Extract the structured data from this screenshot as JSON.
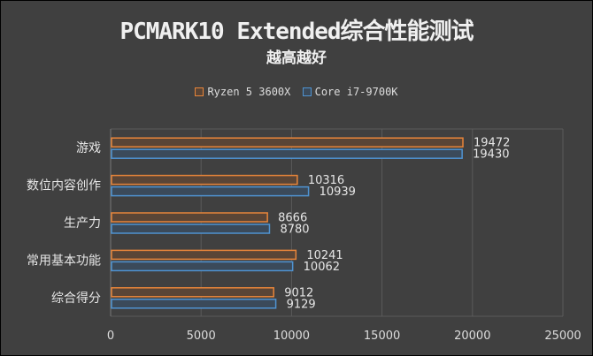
{
  "chart_data": {
    "type": "bar",
    "orientation": "horizontal",
    "title": "PCMARK10 Extended综合性能测试",
    "subtitle": "越高越好",
    "categories": [
      "游戏",
      "数位内容创作",
      "生产力",
      "常用基本功能",
      "综合得分"
    ],
    "series": [
      {
        "name": "Ryzen 5 3600X",
        "color": "#e8853a",
        "fill": "#5a4536",
        "values": [
          19472,
          10316,
          8666,
          10241,
          9012
        ]
      },
      {
        "name": "Core i7-9700K",
        "color": "#4f93d1",
        "fill": "#3b4a5a",
        "values": [
          19430,
          10939,
          8780,
          10062,
          9129
        ]
      }
    ],
    "xlim": [
      0,
      25000
    ],
    "xticks": [
      "0",
      "5000",
      "10000",
      "15000",
      "20000",
      "25000"
    ],
    "grid": true,
    "legend_position": "top"
  }
}
